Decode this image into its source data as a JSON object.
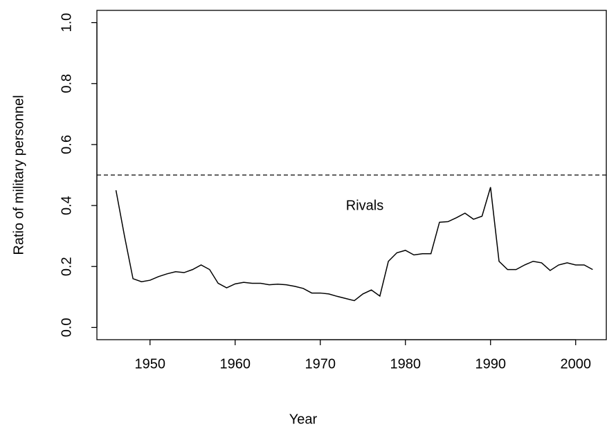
{
  "chart_data": {
    "type": "line",
    "x_label": "Year",
    "y_label": "Ratio of military personnel",
    "annotation": "Rivals",
    "reference_line": 0.5,
    "x": [
      1946,
      1947,
      1948,
      1949,
      1950,
      1951,
      1952,
      1953,
      1954,
      1955,
      1956,
      1957,
      1958,
      1959,
      1960,
      1961,
      1962,
      1963,
      1964,
      1965,
      1966,
      1967,
      1968,
      1969,
      1970,
      1971,
      1972,
      1973,
      1974,
      1975,
      1976,
      1977,
      1978,
      1979,
      1980,
      1981,
      1982,
      1983,
      1984,
      1985,
      1986,
      1987,
      1988,
      1989,
      1990,
      1991,
      1992,
      1993,
      1994,
      1995,
      1996,
      1997,
      1998,
      1999,
      2000,
      2001,
      2002
    ],
    "series": [
      {
        "color": "#000000",
        "values": [
          0.45,
          0.3,
          0.16,
          0.15,
          0.155,
          0.167,
          0.176,
          0.183,
          0.18,
          0.19,
          0.205,
          0.19,
          0.145,
          0.13,
          0.143,
          0.148,
          0.145,
          0.145,
          0.14,
          0.142,
          0.14,
          0.135,
          0.128,
          0.113,
          0.113,
          0.11,
          0.102,
          0.095,
          0.088,
          0.11,
          0.123,
          0.103,
          0.217,
          0.245,
          0.253,
          0.238,
          0.242,
          0.242,
          0.345,
          0.347,
          0.36,
          0.375,
          0.355,
          0.365,
          0.46,
          0.217,
          0.19,
          0.19,
          0.205,
          0.217,
          0.212,
          0.187,
          0.205,
          0.212,
          0.205,
          0.205,
          0.19
        ]
      }
    ],
    "xlim": [
      1943.76,
      2003.6
    ],
    "ylim": [
      -0.04,
      1.04
    ],
    "xticks": [
      1950,
      1960,
      1970,
      1980,
      1990,
      2000
    ],
    "yticks": [
      {
        "value": 0,
        "label": "0.0"
      },
      {
        "value": 0.2,
        "label": "0.2"
      },
      {
        "value": 0.4,
        "label": "0.4"
      },
      {
        "value": 0.6,
        "label": "0.6"
      },
      {
        "value": 0.8,
        "label": "0.8"
      },
      {
        "value": 1,
        "label": "1.0"
      }
    ],
    "grid": false
  }
}
